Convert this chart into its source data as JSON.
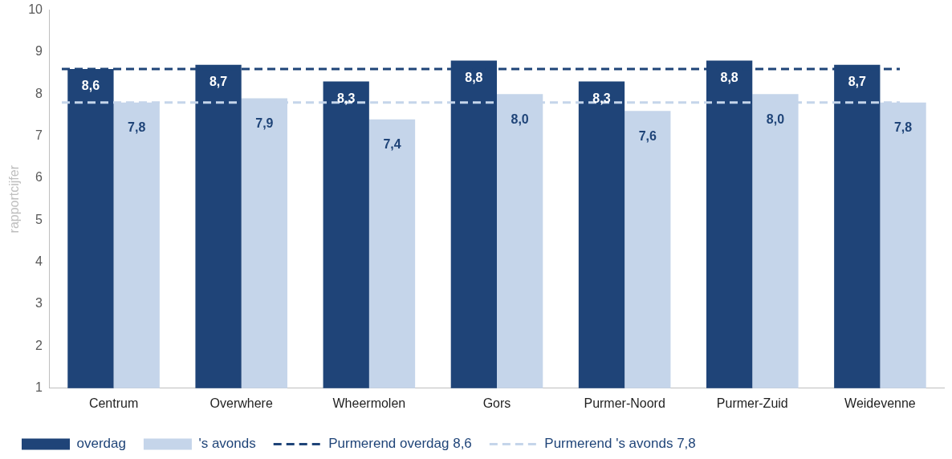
{
  "chart_data": {
    "type": "bar",
    "ylabel": "rapportcijfer",
    "categories": [
      "Centrum",
      "Overwhere",
      "Wheermolen",
      "Gors",
      "Purmer-Noord",
      "Purmer-Zuid",
      "Weidevenne"
    ],
    "series": [
      {
        "name": "overdag",
        "color": "#1f4478",
        "values": [
          8.6,
          8.7,
          8.3,
          8.8,
          8.3,
          8.8,
          8.7
        ],
        "value_labels": [
          "8,6",
          "8,7",
          "8,3",
          "8,8",
          "8,3",
          "8,8",
          "8,7"
        ]
      },
      {
        "name": "'s avonds",
        "color": "#c5d5ea",
        "values": [
          7.8,
          7.9,
          7.4,
          8.0,
          7.6,
          8.0,
          7.8
        ],
        "value_labels": [
          "7,8",
          "7,9",
          "7,4",
          "8,0",
          "7,6",
          "8,0",
          "7,8"
        ]
      }
    ],
    "ref_lines": [
      {
        "axis": "y",
        "value": 8.6,
        "label": "Purmerend overdag 8,6",
        "color": "#1f4478",
        "line_style": "dashed"
      },
      {
        "axis": "y",
        "value": 7.8,
        "label": "Purmerend 's avonds 7,8",
        "color": "#c5d5ea",
        "line_style": "dashed"
      }
    ],
    "ylim": [
      1,
      10
    ],
    "yticks": [
      1,
      2,
      3,
      4,
      5,
      6,
      7,
      8,
      9,
      10
    ],
    "grid": false,
    "legend": "bottom"
  }
}
